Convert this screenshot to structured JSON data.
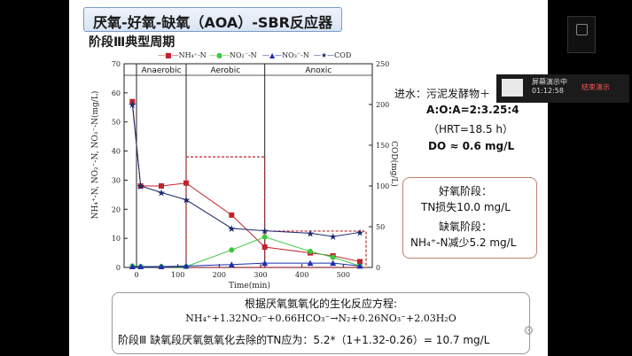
{
  "slide": {
    "title": "厌氧-好氧-缺氧（AOA）-SBR反应器",
    "subtitle": "阶段Ⅲ典型周期"
  },
  "legend": [
    "NH₄⁺-N",
    "NO₂⁻-N",
    "NO₃⁻-N",
    "COD"
  ],
  "phases": [
    "Anaerobic",
    "Aerobic",
    "Anoxic"
  ],
  "axis": {
    "ylabel_left": "NH₄⁺-N, NO₂⁻-N, NO₃⁻-N(mg/L)",
    "ylabel_right": "COD(mg/L)",
    "xlabel": "Time(min)"
  },
  "chart_data": {
    "type": "line",
    "xlim": [
      -30,
      570
    ],
    "ylim_left": [
      0,
      70
    ],
    "ylim_right": [
      0,
      250
    ],
    "x_ticks": [
      0,
      100,
      200,
      300,
      400,
      500
    ],
    "y_ticks_left": [
      0,
      10,
      20,
      30,
      40,
      50,
      60,
      70
    ],
    "y_ticks_right": [
      0,
      50,
      100,
      150,
      200,
      250
    ],
    "phase_boundaries": [
      0,
      120,
      310
    ],
    "series": [
      {
        "name": "NH₄⁺-N",
        "axis": "left",
        "color": "#c0232b",
        "marker": "square",
        "x": [
          -10,
          10,
          60,
          120,
          230,
          310,
          420,
          475,
          540
        ],
        "y": [
          57,
          28,
          28,
          29,
          18,
          7,
          5,
          4,
          2
        ]
      },
      {
        "name": "NO₂⁻-N",
        "axis": "left",
        "color": "#3cc83c",
        "marker": "circle",
        "x": [
          -10,
          10,
          60,
          120,
          230,
          310,
          420,
          475,
          540
        ],
        "y": [
          0.5,
          0.3,
          0.3,
          0.3,
          6,
          10.5,
          5.5,
          3.5,
          0.5
        ]
      },
      {
        "name": "NO₃⁻-N",
        "axis": "left",
        "color": "#1f2db0",
        "marker": "triangle",
        "x": [
          -10,
          10,
          60,
          120,
          230,
          310,
          420,
          475,
          540
        ],
        "y": [
          0.3,
          0.3,
          0.3,
          0.5,
          1,
          1.5,
          1.5,
          1.5,
          0.5
        ]
      },
      {
        "name": "COD",
        "axis": "right",
        "color": "#1e2a6e",
        "marker": "star",
        "x": [
          -10,
          10,
          60,
          120,
          230,
          310,
          420,
          475,
          540
        ],
        "y": [
          200,
          100,
          92,
          83,
          48,
          45,
          42,
          38,
          43
        ]
      }
    ]
  },
  "info": {
    "line1": "进水：污泥发酵物＋",
    "line2": "A:O:A=2:3.25:4",
    "line3": "（HRT=18.5 h）",
    "line4": "DO ≈ 0.6 mg/L",
    "box_line1": "好氧阶段：",
    "box_line2": "TN损失10.0 mg/L",
    "box_line3": "缺氧阶段：",
    "box_line4": "NH₄⁺-N减少5.2 mg/L"
  },
  "equation": {
    "title": "根据厌氧氨氧化的生化反应方程:",
    "formula": "NH₄⁺+1.32NO₂⁻+0.66HCO₃⁻→N₂+0.26NO₃⁻+2.03H₂O",
    "result": "阶段Ⅲ 缺氧段厌氧氨氧化去除的TN应为：5.2*（1+1.32-0.26）= 10.7 mg/L"
  },
  "overlay": {
    "line1": "屏幕演示中",
    "line2": "01:12:58",
    "button": "结束演示"
  },
  "colors": {
    "highlight_red": "#c0232b",
    "info_highlight": "#c8641e"
  }
}
